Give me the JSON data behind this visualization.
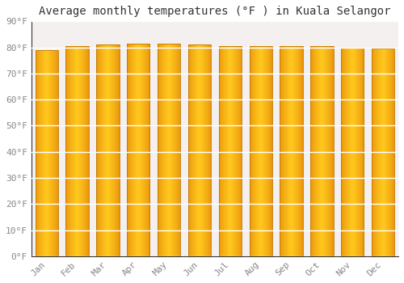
{
  "title": "Average monthly temperatures (°F ) in Kuala Selangor",
  "months": [
    "Jan",
    "Feb",
    "Mar",
    "Apr",
    "May",
    "Jun",
    "Jul",
    "Aug",
    "Sep",
    "Oct",
    "Nov",
    "Dec"
  ],
  "values": [
    79.0,
    80.5,
    81.0,
    81.5,
    81.5,
    81.0,
    80.5,
    80.5,
    80.5,
    80.5,
    80.0,
    79.5
  ],
  "ylim": [
    0,
    90
  ],
  "yticks": [
    0,
    10,
    20,
    30,
    40,
    50,
    60,
    70,
    80,
    90
  ],
  "ytick_labels": [
    "0°F",
    "10°F",
    "20°F",
    "30°F",
    "40°F",
    "50°F",
    "60°F",
    "70°F",
    "80°F",
    "90°F"
  ],
  "bar_color_left": "#E8920A",
  "bar_color_center": "#FFCC00",
  "bar_color_right": "#E8920A",
  "bar_edge_color": "#C07800",
  "background_color": "#ffffff",
  "plot_bg_color": "#f5f0f0",
  "grid_color": "#ffffff",
  "title_fontsize": 10,
  "tick_fontsize": 8,
  "font_family": "monospace"
}
